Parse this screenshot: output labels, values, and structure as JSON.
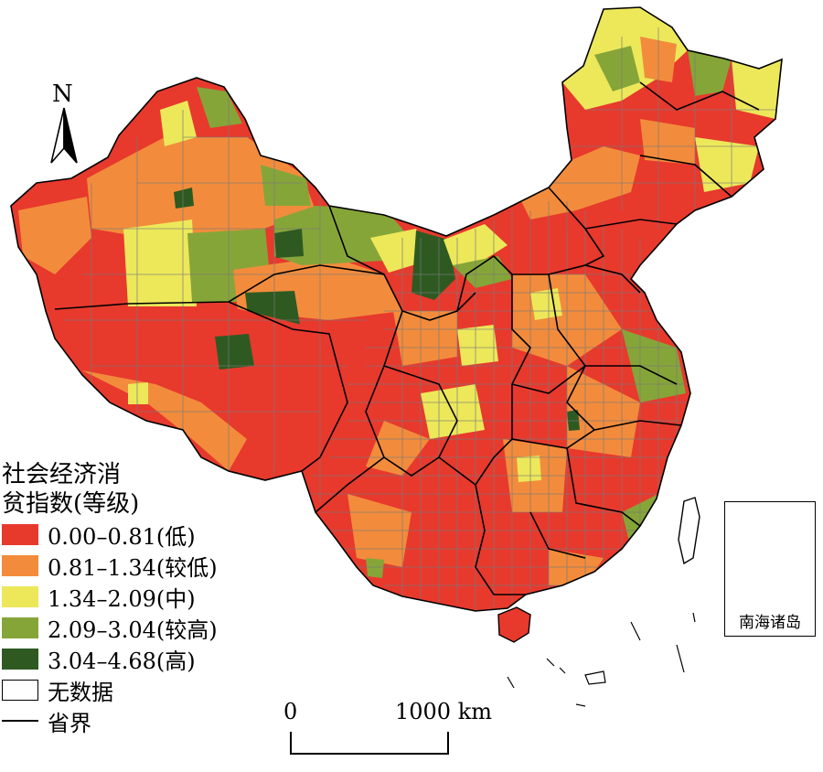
{
  "map": {
    "north_label": "N",
    "legend": {
      "title_line1": "社会经济消",
      "title_line2": "贫指数(等级)",
      "classes": [
        {
          "label": "0.00–0.81(低)",
          "color": "#e8392d"
        },
        {
          "label": "0.81–1.34(较低)",
          "color": "#f28c3c"
        },
        {
          "label": "1.34–2.09(中)",
          "color": "#ece85a"
        },
        {
          "label": "2.09–3.04(较高)",
          "color": "#86a539"
        },
        {
          "label": "3.04–4.68(高)",
          "color": "#2e5a22"
        }
      ],
      "no_data_label": "无数据",
      "boundary_label": "省界"
    },
    "scale": {
      "start_label": "0",
      "end_label": "1000 km"
    },
    "inset": {
      "label": "南海诸岛"
    },
    "colors": {
      "county_border": "#7a7a7a",
      "province_border": "#000000",
      "background": "#ffffff"
    }
  }
}
